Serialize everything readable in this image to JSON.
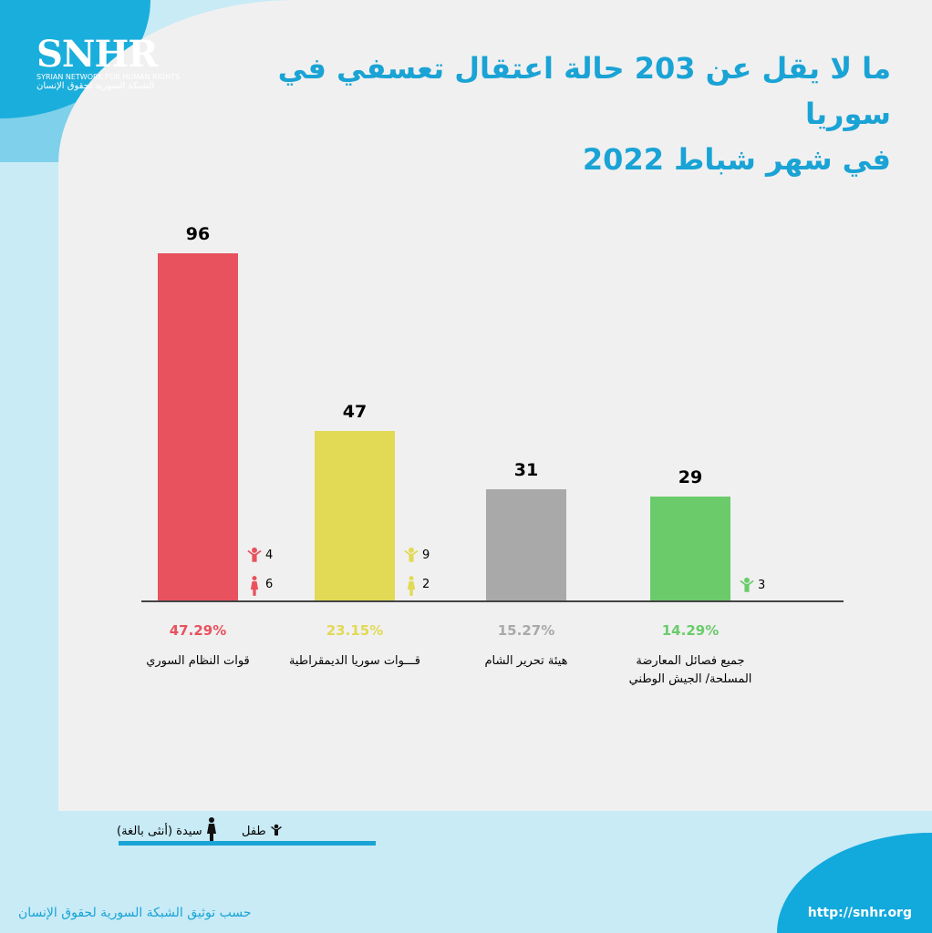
{
  "logo": {
    "name": "SNHR",
    "en": "SYRIAN NETWORK FOR HUMAN RIGHTS",
    "ar": "الشبكة السورية لحقوق الإنسان"
  },
  "title": {
    "line1": "ما لا يقل عن 203 حالة اعتقال تعسفي في سوريا",
    "line2": "في شهر شباط 2022"
  },
  "chart_data": {
    "type": "bar",
    "categories": [
      "قوات النظام السوري",
      "قـــوات سوريا الديمقراطية",
      "هيئة تحرير الشام",
      "جميع فصائل المعارضة المسلحة/ الجيش الوطني"
    ],
    "values": [
      96,
      47,
      31,
      29
    ],
    "value_labels": [
      "96",
      "47",
      "31",
      "29"
    ],
    "percentages": [
      "47.29%",
      "23.15%",
      "15.27%",
      "14.29%"
    ],
    "colors": [
      "#e8525e",
      "#e2d955",
      "#a9a9a9",
      "#6bcb6b"
    ],
    "children": [
      "4",
      "9",
      null,
      "3"
    ],
    "women": [
      "6",
      "2",
      null,
      null
    ],
    "ylim": [
      0,
      100
    ]
  },
  "legend": {
    "child": "طفل",
    "woman": "سيدة (أنثى بالغة)"
  },
  "footer": {
    "source": "حسب توثيق الشبكة السورية لحقوق الإنسان",
    "url": "http://snhr.org"
  }
}
